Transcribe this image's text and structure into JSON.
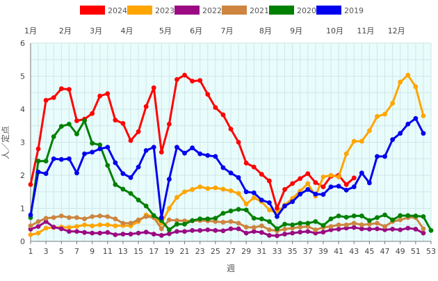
{
  "chart_data": {
    "type": "line",
    "ylabel": "人／定点",
    "xlabel": "週",
    "ylim": [
      0,
      6
    ],
    "xlim": [
      1,
      53
    ],
    "yticks": [
      "0",
      "1",
      "2",
      "3",
      "4",
      "5",
      "6"
    ],
    "xticks": [
      "1",
      "3",
      "5",
      "7",
      "9",
      "11",
      "13",
      "15",
      "17",
      "19",
      "21",
      "23",
      "25",
      "27",
      "29",
      "31",
      "33",
      "35",
      "37",
      "39",
      "41",
      "43",
      "45",
      "47",
      "49",
      "51",
      "53"
    ],
    "months": [
      {
        "label": "1月",
        "week": 1
      },
      {
        "label": "2月",
        "week": 5.5
      },
      {
        "label": "3月",
        "week": 9.5
      },
      {
        "label": "4月",
        "week": 13.5
      },
      {
        "label": "5月",
        "week": 18.5
      },
      {
        "label": "6月",
        "week": 22.5
      },
      {
        "label": "7月",
        "week": 26.5
      },
      {
        "label": "8月",
        "week": 31.5
      },
      {
        "label": "9月",
        "week": 35.5
      },
      {
        "label": "10月",
        "week": 40.5
      },
      {
        "label": "11月",
        "week": 44.5
      },
      {
        "label": "12月",
        "week": 48.5
      }
    ],
    "grid": true,
    "legend_position": "top",
    "series": [
      {
        "name": "2024",
        "color": "#ff0000",
        "values": [
          1.72,
          2.8,
          4.27,
          4.35,
          4.62,
          4.6,
          3.65,
          3.7,
          3.87,
          4.4,
          4.47,
          3.67,
          3.57,
          3.05,
          3.32,
          4.08,
          4.65,
          2.7,
          3.55,
          4.9,
          5.03,
          4.85,
          4.87,
          4.45,
          4.05,
          3.83,
          3.4,
          3.0,
          2.37,
          2.25,
          2.03,
          1.83,
          1.0,
          1.57,
          1.75,
          1.9,
          2.05,
          1.78,
          1.65,
          1.97,
          2.0,
          1.72,
          1.92
        ]
      },
      {
        "name": "2023",
        "color": "#ffa500",
        "values": [
          0.2,
          0.25,
          0.4,
          0.42,
          0.43,
          0.42,
          0.45,
          0.5,
          0.47,
          0.5,
          0.5,
          0.47,
          0.48,
          0.47,
          0.6,
          0.8,
          0.75,
          0.55,
          1.0,
          1.33,
          1.5,
          1.57,
          1.65,
          1.6,
          1.62,
          1.58,
          1.53,
          1.45,
          1.13,
          1.32,
          1.2,
          0.95,
          0.87,
          1.1,
          1.3,
          1.52,
          1.75,
          1.37,
          1.95,
          2.0,
          1.95,
          2.65,
          3.03,
          3.03,
          3.35,
          3.78,
          3.85,
          4.18,
          4.82,
          5.03,
          4.68,
          3.8
        ]
      },
      {
        "name": "2022",
        "color": "#9b0a82",
        "values": [
          0.37,
          0.45,
          0.6,
          0.43,
          0.38,
          0.3,
          0.3,
          0.27,
          0.25,
          0.25,
          0.27,
          0.2,
          0.22,
          0.22,
          0.25,
          0.28,
          0.22,
          0.18,
          0.23,
          0.3,
          0.3,
          0.33,
          0.33,
          0.35,
          0.33,
          0.32,
          0.38,
          0.38,
          0.25,
          0.3,
          0.27,
          0.18,
          0.17,
          0.22,
          0.25,
          0.28,
          0.3,
          0.25,
          0.28,
          0.35,
          0.37,
          0.4,
          0.42,
          0.38,
          0.37,
          0.38,
          0.35,
          0.37,
          0.35,
          0.4,
          0.37,
          0.25
        ]
      },
      {
        "name": "2021",
        "color": "#cd853f",
        "values": [
          0.47,
          0.6,
          0.7,
          0.72,
          0.77,
          0.72,
          0.72,
          0.68,
          0.75,
          0.77,
          0.75,
          0.68,
          0.55,
          0.55,
          0.65,
          0.75,
          0.72,
          0.38,
          0.65,
          0.63,
          0.62,
          0.62,
          0.63,
          0.62,
          0.6,
          0.58,
          0.6,
          0.55,
          0.43,
          0.42,
          0.47,
          0.35,
          0.32,
          0.37,
          0.4,
          0.43,
          0.45,
          0.35,
          0.42,
          0.45,
          0.5,
          0.5,
          0.55,
          0.5,
          0.52,
          0.55,
          0.45,
          0.6,
          0.65,
          0.72,
          0.72,
          0.38
        ]
      },
      {
        "name": "2020",
        "color": "#008000",
        "values": [
          0.72,
          2.43,
          2.43,
          3.17,
          3.48,
          3.55,
          3.25,
          3.65,
          2.97,
          2.92,
          2.3,
          1.72,
          1.58,
          1.45,
          1.25,
          1.07,
          0.78,
          0.63,
          0.35,
          0.52,
          0.52,
          0.63,
          0.68,
          0.68,
          0.7,
          0.85,
          0.92,
          0.97,
          0.95,
          0.7,
          0.68,
          0.6,
          0.38,
          0.52,
          0.5,
          0.55,
          0.55,
          0.6,
          0.48,
          0.68,
          0.77,
          0.73,
          0.77,
          0.77,
          0.63,
          0.72,
          0.8,
          0.65,
          0.78,
          0.78,
          0.77,
          0.75,
          0.33
        ]
      },
      {
        "name": "2019",
        "color": "#0000ee",
        "values": [
          0.8,
          2.1,
          2.05,
          2.5,
          2.48,
          2.5,
          2.07,
          2.65,
          2.7,
          2.8,
          2.85,
          2.38,
          2.05,
          1.93,
          2.25,
          2.75,
          2.85,
          0.72,
          1.88,
          2.85,
          2.67,
          2.83,
          2.65,
          2.6,
          2.57,
          2.23,
          2.07,
          1.93,
          1.5,
          1.47,
          1.25,
          1.17,
          0.75,
          1.07,
          1.2,
          1.43,
          1.57,
          1.43,
          1.42,
          1.65,
          1.67,
          1.55,
          1.65,
          2.07,
          1.77,
          2.57,
          2.57,
          3.08,
          3.27,
          3.55,
          3.72,
          3.27
        ]
      }
    ]
  }
}
